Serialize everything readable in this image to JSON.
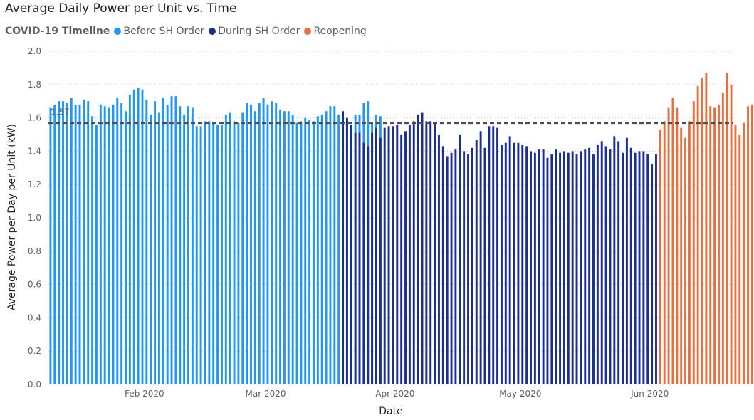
{
  "chart_data": {
    "type": "bar",
    "title": "Average Daily Power per Unit vs. Time",
    "xlabel": "Date",
    "ylabel": "Average Power per Day per Unit (kW)",
    "ylim": [
      0,
      2.0
    ],
    "yticks": [
      "0.0",
      "0.2",
      "0.4",
      "0.6",
      "0.8",
      "1.0",
      "1.2",
      "1.4",
      "1.6",
      "1.8",
      "2.0"
    ],
    "xticks": [
      "Feb 2020",
      "Mar 2020",
      "Apr 2020",
      "May 2020",
      "Jun 2020"
    ],
    "x_start": "2020-01-09",
    "x_end": "2020-06-20",
    "legend": {
      "title": "COVID-19 Timeline",
      "position": "top-left",
      "items": [
        {
          "name": "Before SH Order",
          "color": "#2196f3"
        },
        {
          "name": "During SH Order",
          "color": "#1c2e94"
        },
        {
          "name": "Reopening",
          "color": "#e8703f"
        }
      ]
    },
    "reference_line": {
      "value": 1.57,
      "label": "1.57",
      "style": "dashed",
      "color": "#4d4d4d"
    },
    "grid": "horizontal dotted",
    "series": [
      {
        "name": "Before SH Order",
        "start": "2020-01-09",
        "values": [
          1.66,
          1.68,
          1.7,
          1.7,
          1.69,
          1.72,
          1.68,
          1.68,
          1.71,
          1.7,
          1.61,
          1.56,
          1.68,
          1.67,
          1.66,
          1.68,
          1.72,
          1.69,
          1.64,
          1.74,
          1.77,
          1.78,
          1.77,
          1.71,
          1.62,
          1.7,
          1.63,
          1.72,
          1.68,
          1.73,
          1.73,
          1.67,
          1.62,
          1.67,
          1.66,
          1.55,
          1.55,
          1.58,
          1.58,
          1.57,
          1.56,
          1.56,
          1.62,
          1.63,
          1.58,
          1.57,
          1.63,
          1.69,
          1.68,
          1.64,
          1.69,
          1.72,
          1.68,
          1.7,
          1.69,
          1.65,
          1.64,
          1.64,
          1.62,
          1.57,
          1.58,
          1.6,
          1.59,
          1.58,
          1.61,
          1.62,
          1.64,
          1.67,
          1.67,
          1.62,
          1.6,
          1.57,
          1.55,
          1.62,
          1.62,
          1.69,
          1.7,
          1.57,
          1.62,
          1.61
        ]
      },
      {
        "name": "During SH Order",
        "start": "2020-03-19",
        "values": [
          1.64,
          1.6,
          1.56,
          1.51,
          1.51,
          1.45,
          1.43,
          1.51,
          1.54,
          1.48,
          1.54,
          1.55,
          1.55,
          1.56,
          1.5,
          1.52,
          1.56,
          1.58,
          1.62,
          1.63,
          1.58,
          1.58,
          1.57,
          1.5,
          1.43,
          1.37,
          1.39,
          1.41,
          1.5,
          1.4,
          1.38,
          1.42,
          1.47,
          1.52,
          1.42,
          1.55,
          1.55,
          1.54,
          1.44,
          1.45,
          1.49,
          1.45,
          1.45,
          1.44,
          1.43,
          1.4,
          1.39,
          1.41,
          1.41,
          1.36,
          1.38,
          1.41,
          1.39,
          1.4,
          1.39,
          1.4,
          1.38,
          1.4,
          1.41,
          1.42,
          1.38,
          1.44,
          1.46,
          1.43,
          1.41,
          1.49,
          1.46,
          1.39,
          1.48,
          1.42,
          1.39,
          1.4,
          1.4,
          1.38,
          1.32,
          1.38
        ]
      },
      {
        "name": "Reopening",
        "start": "2020-06-03",
        "values": [
          1.53,
          1.58,
          1.66,
          1.72,
          1.66,
          1.54,
          1.48,
          1.58,
          1.7,
          1.79,
          1.84,
          1.87,
          1.67,
          1.66,
          1.68,
          1.75,
          1.87,
          1.8,
          1.56,
          1.5,
          1.57,
          1.67,
          1.68,
          1.74,
          1.78
        ]
      }
    ]
  }
}
